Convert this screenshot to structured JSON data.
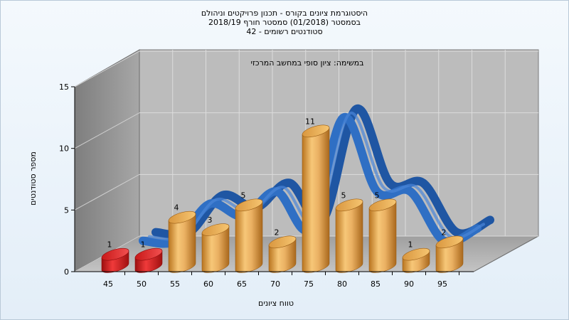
{
  "titles": [
    "היסטוגרמת ציונים בקורס - תכנון פרויקטים וניהולם",
    "בסמסטר  (01/2018)  סמסטר חורף 2018/19",
    "סטודנטים רשומים - 42"
  ],
  "chart_data": {
    "type": "bar",
    "subtitle": "במשימה: ציון סופי במחשב המרכזי",
    "xlabel": "טווח ציונים",
    "ylabel": "מספר סטודנטים",
    "categories": [
      "45",
      "50",
      "55",
      "60",
      "65",
      "70",
      "75",
      "80",
      "85",
      "90",
      "95"
    ],
    "values": [
      1,
      1,
      4,
      3,
      5,
      2,
      11,
      5,
      5,
      1,
      2
    ],
    "data_labels": [
      "1",
      "1",
      "4",
      "3",
      "5",
      "2",
      "11",
      "5",
      "5",
      "1",
      "2"
    ],
    "bar_colors": [
      "#d81c1c",
      "#d81c1c",
      "#e0a14f",
      "#e0a14f",
      "#e0a14f",
      "#e0a14f",
      "#e0a14f",
      "#e0a14f",
      "#e0a14f",
      "#e0a14f",
      "#e0a14f"
    ],
    "yticks": [
      "0",
      "5",
      "10",
      "15"
    ],
    "ylim": [
      0,
      15
    ],
    "grid": true,
    "ribbon": {
      "color": "#2f6fc4"
    }
  }
}
